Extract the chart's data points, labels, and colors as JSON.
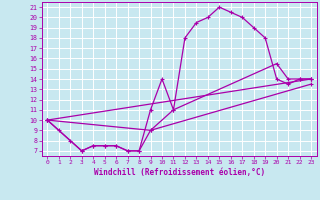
{
  "xlabel": "Windchill (Refroidissement éolien,°C)",
  "background_color": "#c8e8f0",
  "grid_color": "#ffffff",
  "line_color": "#aa00aa",
  "xlim": [
    -0.5,
    23.5
  ],
  "ylim": [
    6.5,
    21.5
  ],
  "xticks": [
    0,
    1,
    2,
    3,
    4,
    5,
    6,
    7,
    8,
    9,
    10,
    11,
    12,
    13,
    14,
    15,
    16,
    17,
    18,
    19,
    20,
    21,
    22,
    23
  ],
  "yticks": [
    7,
    8,
    9,
    10,
    11,
    12,
    13,
    14,
    15,
    16,
    17,
    18,
    19,
    20,
    21
  ],
  "series1": {
    "x": [
      0,
      1,
      2,
      3,
      4,
      5,
      6,
      7,
      8,
      9,
      10,
      11,
      12,
      13,
      14,
      15,
      16,
      17,
      18,
      19,
      20,
      21,
      22,
      23
    ],
    "y": [
      10.0,
      9.0,
      8.0,
      7.0,
      7.5,
      7.5,
      7.5,
      7.0,
      7.0,
      11.0,
      14.0,
      11.0,
      18.0,
      19.5,
      20.0,
      21.0,
      20.5,
      20.0,
      19.0,
      18.0,
      14.0,
      13.5,
      14.0,
      14.0
    ]
  },
  "series2": {
    "x": [
      0,
      23
    ],
    "y": [
      10.0,
      14.0
    ]
  },
  "series3": {
    "x": [
      0,
      9,
      23
    ],
    "y": [
      10.0,
      9.0,
      13.5
    ]
  },
  "series4": {
    "x": [
      0,
      3,
      4,
      5,
      6,
      7,
      8,
      9,
      11,
      20,
      21,
      22,
      23
    ],
    "y": [
      10.0,
      7.0,
      7.5,
      7.5,
      7.5,
      7.0,
      7.0,
      9.0,
      11.0,
      15.5,
      14.0,
      14.0,
      14.0
    ]
  }
}
